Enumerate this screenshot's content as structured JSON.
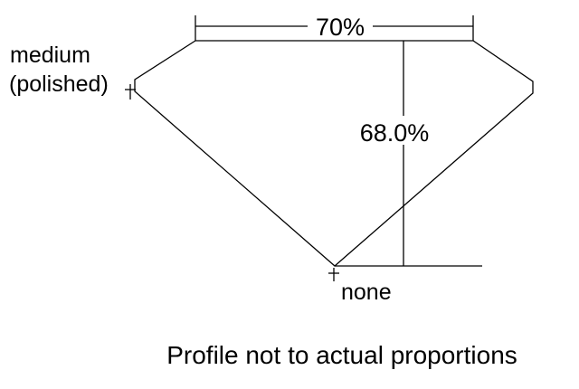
{
  "diagram": {
    "table_label": "70%",
    "depth_label": "68.0%",
    "girdle_label_line1": "medium",
    "girdle_label_line2": "(polished)",
    "culet_label": "none",
    "caption": "Profile not to actual proportions",
    "line_color": "#000000",
    "background": "#ffffff"
  }
}
